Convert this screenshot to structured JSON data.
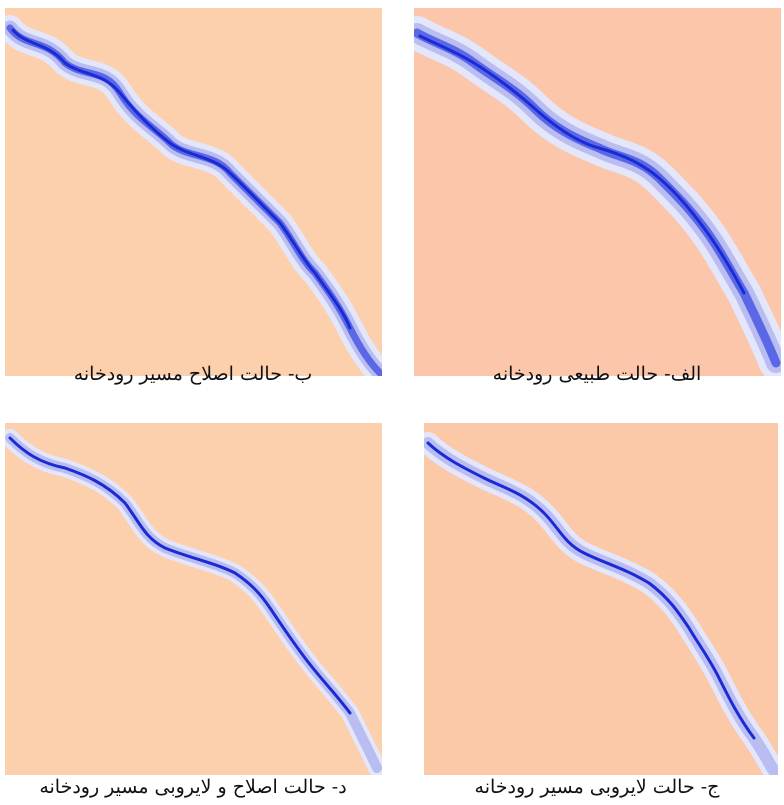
{
  "panels": [
    {
      "id": "b",
      "caption": "ب- حالت اصلاح مسیر رودخانه",
      "background": "#fdd0ad"
    },
    {
      "id": "alef",
      "caption": "الف- حالت طبیعی رودخانه",
      "background": "#fcc6ab"
    },
    {
      "id": "d",
      "caption": "د- حالت اصلاح و لایروبی مسیر رودخانه",
      "background": "#fdd0ad"
    },
    {
      "id": "jim",
      "caption": "ج- حالت لایروبی مسیر رودخانه",
      "background": "#fcc9a8"
    }
  ],
  "colors": {
    "river_deep": "#1a2bd6",
    "river_mid": "#5a68e6",
    "river_light": "#b9bdf2",
    "river_pale": "#e4e6fb"
  }
}
